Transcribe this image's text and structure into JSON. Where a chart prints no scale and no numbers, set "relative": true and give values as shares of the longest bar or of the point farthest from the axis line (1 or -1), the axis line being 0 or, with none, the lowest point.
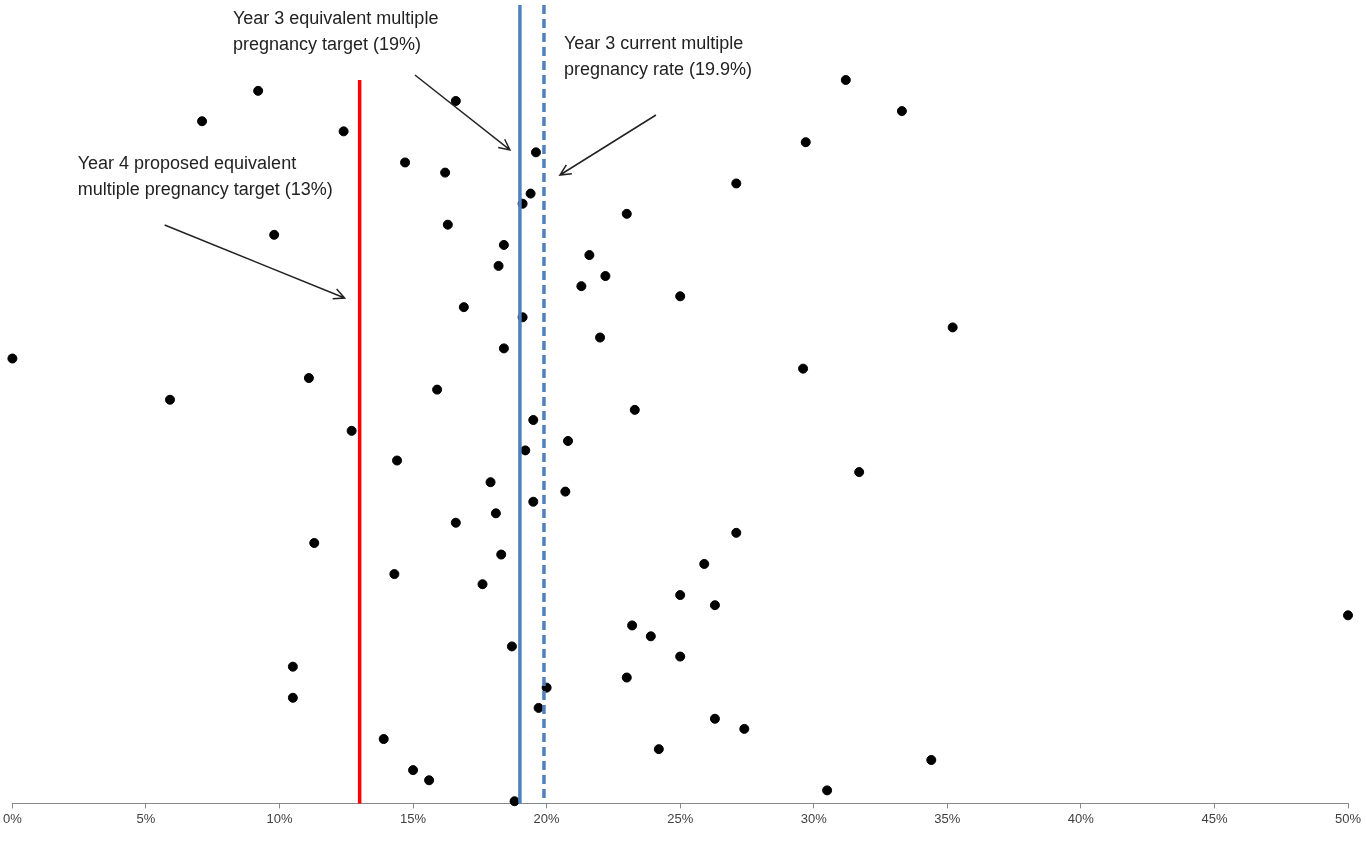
{
  "chart_data": {
    "type": "scatter",
    "relative": true,
    "tick_labels": "x",
    "grid": false,
    "legend": false,
    "marker": "circle",
    "xlim": [
      0,
      50
    ],
    "xticks": [
      {
        "value": 0,
        "label": "0%"
      },
      {
        "value": 5,
        "label": "5%"
      },
      {
        "value": 10,
        "label": "10%"
      },
      {
        "value": 15,
        "label": "15%"
      },
      {
        "value": 20,
        "label": "20%"
      },
      {
        "value": 25,
        "label": "25%"
      },
      {
        "value": 30,
        "label": "30%"
      },
      {
        "value": 35,
        "label": "35%"
      },
      {
        "value": 40,
        "label": "40%"
      },
      {
        "value": 45,
        "label": "45%"
      },
      {
        "value": 50,
        "label": "50%"
      }
    ],
    "series": [
      {
        "color": "#000000",
        "x": [
          31.2,
          9.2,
          16.6,
          33.3,
          7.1,
          12.4,
          29.7,
          19.6,
          14.7,
          16.2,
          27.1,
          19.4,
          19.1,
          23.0,
          16.3,
          9.8,
          18.4,
          21.6,
          18.2,
          22.2,
          21.3,
          25.0,
          16.9,
          19.1,
          35.2,
          22.0,
          18.4,
          0,
          29.6,
          11.1,
          15.9,
          5.9,
          23.3,
          19.5,
          12.7,
          20.8,
          19.2,
          14.4,
          31.7,
          17.9,
          20.7,
          19.5,
          18.1,
          16.6,
          27.1,
          11.3,
          18.3,
          25.9,
          14.3,
          17.6,
          25.0,
          26.3,
          50,
          23.2,
          23.9,
          18.7,
          25.0,
          10.5,
          23.0,
          20.0,
          10.5,
          19.7,
          26.3,
          27.4,
          13.9,
          24.2,
          34.4,
          15.0,
          15.6,
          30.5,
          18.8
        ],
        "values": [
          1.0,
          0.985,
          0.971,
          0.957,
          0.943,
          0.929,
          0.914,
          0.9,
          0.886,
          0.872,
          0.857,
          0.843,
          0.829,
          0.815,
          0.8,
          0.786,
          0.772,
          0.758,
          0.743,
          0.729,
          0.715,
          0.701,
          0.686,
          0.672,
          0.658,
          0.644,
          0.629,
          0.615,
          0.601,
          0.588,
          0.572,
          0.558,
          0.544,
          0.53,
          0.515,
          0.501,
          0.488,
          0.474,
          0.458,
          0.444,
          0.431,
          0.417,
          0.401,
          0.388,
          0.374,
          0.36,
          0.344,
          0.331,
          0.317,
          0.303,
          0.288,
          0.274,
          0.26,
          0.246,
          0.231,
          0.217,
          0.203,
          0.189,
          0.174,
          0.16,
          0.146,
          0.132,
          0.117,
          0.103,
          0.089,
          0.075,
          0.06,
          0.046,
          0.032,
          0.018,
          0.003
        ]
      }
    ],
    "ref_lines": [
      {
        "axis": "x",
        "value": 13,
        "label": "Year 4 proposed equivalent multiple pregnancy target (13%)",
        "color": "#ff0000",
        "line_style": "solid"
      },
      {
        "axis": "x",
        "value": 19,
        "label": "Year 3 equivalent multiple pregnancy target (19%)",
        "color": "#4f81bd",
        "line_style": "solid"
      },
      {
        "axis": "x",
        "value": 19.9,
        "label": "Year 3 current multiple pregnancy rate (19.9%)",
        "color": "#4f81bd",
        "line_style": "dashed"
      }
    ]
  }
}
